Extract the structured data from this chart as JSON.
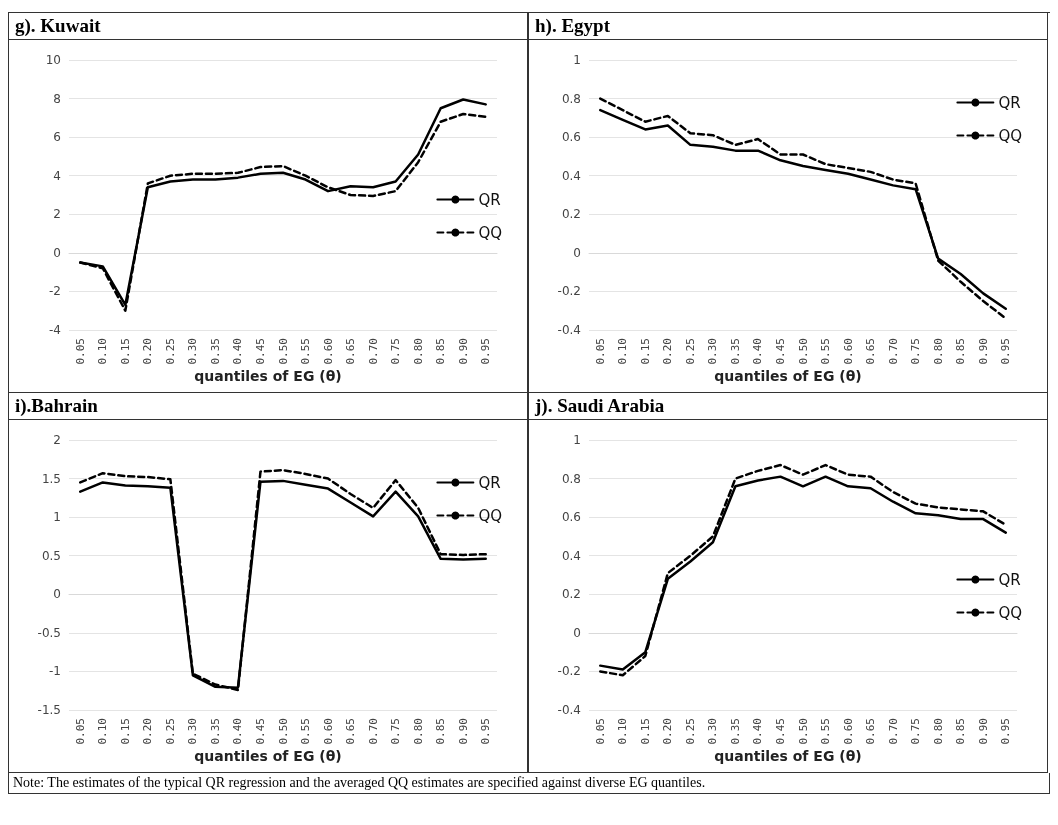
{
  "chart_data": [
    {
      "type": "line",
      "title": "g). Kuwait",
      "xlabel": "quantiles of EG (θ)",
      "categories": [
        "0.05",
        "0.10",
        "0.15",
        "0.20",
        "0.25",
        "0.30",
        "0.35",
        "0.40",
        "0.45",
        "0.50",
        "0.55",
        "0.60",
        "0.65",
        "0.70",
        "0.75",
        "0.80",
        "0.85",
        "0.90",
        "0.95"
      ],
      "ylim": [
        -4,
        10
      ],
      "yticks": [
        -4,
        -2,
        0,
        2,
        4,
        6,
        8,
        10
      ],
      "grid": "y",
      "legend": "right",
      "marker": "none",
      "series": [
        {
          "name": "QR",
          "color": "#000000",
          "line_style": "solid",
          "values": [
            -0.5,
            -0.7,
            -2.7,
            3.4,
            3.7,
            3.8,
            3.8,
            3.9,
            4.1,
            4.15,
            3.8,
            3.2,
            3.45,
            3.4,
            3.7,
            5.1,
            7.5,
            7.95,
            7.7
          ]
        },
        {
          "name": "QQ",
          "color": "#000000",
          "line_style": "dashed",
          "values": [
            -0.5,
            -0.8,
            -3.0,
            3.6,
            4.0,
            4.1,
            4.1,
            4.15,
            4.45,
            4.5,
            4.0,
            3.4,
            3.0,
            2.95,
            3.2,
            4.7,
            6.8,
            7.2,
            7.05
          ]
        }
      ]
    },
    {
      "type": "line",
      "title": "h). Egypt",
      "xlabel": "quantiles of EG (θ)",
      "categories": [
        "0.05",
        "0.10",
        "0.15",
        "0.20",
        "0.25",
        "0.30",
        "0.35",
        "0.40",
        "0.45",
        "0.50",
        "0.55",
        "0.60",
        "0.65",
        "0.70",
        "0.75",
        "0.80",
        "0.85",
        "0.90",
        "0.95"
      ],
      "ylim": [
        -0.4,
        1
      ],
      "yticks": [
        -0.4,
        -0.2,
        0,
        0.2,
        0.4,
        0.6,
        0.8,
        1
      ],
      "grid": "y",
      "legend": "top right",
      "marker": "none",
      "series": [
        {
          "name": "QR",
          "color": "#000000",
          "line_style": "solid",
          "values": [
            0.74,
            0.69,
            0.64,
            0.66,
            0.56,
            0.55,
            0.53,
            0.53,
            0.48,
            0.45,
            0.43,
            0.41,
            0.38,
            0.35,
            0.33,
            -0.03,
            -0.11,
            -0.21,
            -0.29
          ]
        },
        {
          "name": "QQ",
          "color": "#000000",
          "line_style": "dashed",
          "values": [
            0.8,
            0.74,
            0.68,
            0.71,
            0.62,
            0.61,
            0.56,
            0.59,
            0.51,
            0.51,
            0.46,
            0.44,
            0.42,
            0.38,
            0.36,
            -0.04,
            -0.15,
            -0.25,
            -0.34
          ]
        }
      ]
    },
    {
      "type": "line",
      "title": "i).Bahrain",
      "xlabel": "quantiles of EG (θ)",
      "categories": [
        "0.05",
        "0.10",
        "0.15",
        "0.20",
        "0.25",
        "0.30",
        "0.35",
        "0.40",
        "0.45",
        "0.50",
        "0.55",
        "0.60",
        "0.65",
        "0.70",
        "0.75",
        "0.80",
        "0.85",
        "0.90",
        "0.95"
      ],
      "ylim": [
        -1.5,
        2
      ],
      "yticks": [
        -1.5,
        -1,
        -0.5,
        0,
        0.5,
        1,
        1.5,
        2
      ],
      "grid": "y",
      "legend": "top right",
      "marker": "none",
      "series": [
        {
          "name": "QR",
          "color": "#000000",
          "line_style": "solid",
          "values": [
            1.33,
            1.45,
            1.41,
            1.4,
            1.38,
            -1.05,
            -1.2,
            -1.21,
            1.46,
            1.47,
            1.42,
            1.37,
            1.19,
            1.01,
            1.33,
            1.01,
            0.46,
            0.45,
            0.46
          ]
        },
        {
          "name": "QQ",
          "color": "#000000",
          "line_style": "dashed",
          "values": [
            1.45,
            1.57,
            1.53,
            1.52,
            1.49,
            -1.03,
            -1.17,
            -1.24,
            1.59,
            1.61,
            1.56,
            1.5,
            1.3,
            1.12,
            1.48,
            1.12,
            0.52,
            0.51,
            0.52
          ]
        }
      ]
    },
    {
      "type": "line",
      "title": "j). Saudi Arabia",
      "xlabel": "quantiles of EG (θ)",
      "categories": [
        "0.05",
        "0.10",
        "0.15",
        "0.20",
        "0.25",
        "0.30",
        "0.35",
        "0.40",
        "0.45",
        "0.50",
        "0.55",
        "0.60",
        "0.65",
        "0.70",
        "0.75",
        "0.80",
        "0.85",
        "0.90",
        "0.95"
      ],
      "ylim": [
        -0.4,
        1
      ],
      "yticks": [
        -0.4,
        -0.2,
        0,
        0.2,
        0.4,
        0.6,
        0.8,
        1
      ],
      "grid": "y",
      "legend": "right",
      "marker": "none",
      "annotations": [
        "Note: The estimates of the typical QR regression and the averaged QQ estimates are specified against diverse EG quantiles."
      ],
      "series": [
        {
          "name": "QR",
          "color": "#000000",
          "line_style": "solid",
          "values": [
            -0.17,
            -0.19,
            -0.1,
            0.28,
            0.37,
            0.47,
            0.76,
            0.79,
            0.81,
            0.76,
            0.81,
            0.76,
            0.75,
            0.68,
            0.62,
            0.61,
            0.59,
            0.59,
            0.52
          ]
        },
        {
          "name": "QQ",
          "color": "#000000",
          "line_style": "dashed",
          "values": [
            -0.2,
            -0.22,
            -0.12,
            0.31,
            0.4,
            0.5,
            0.8,
            0.84,
            0.87,
            0.82,
            0.87,
            0.82,
            0.81,
            0.73,
            0.67,
            0.65,
            0.64,
            0.63,
            0.56
          ]
        }
      ]
    }
  ]
}
